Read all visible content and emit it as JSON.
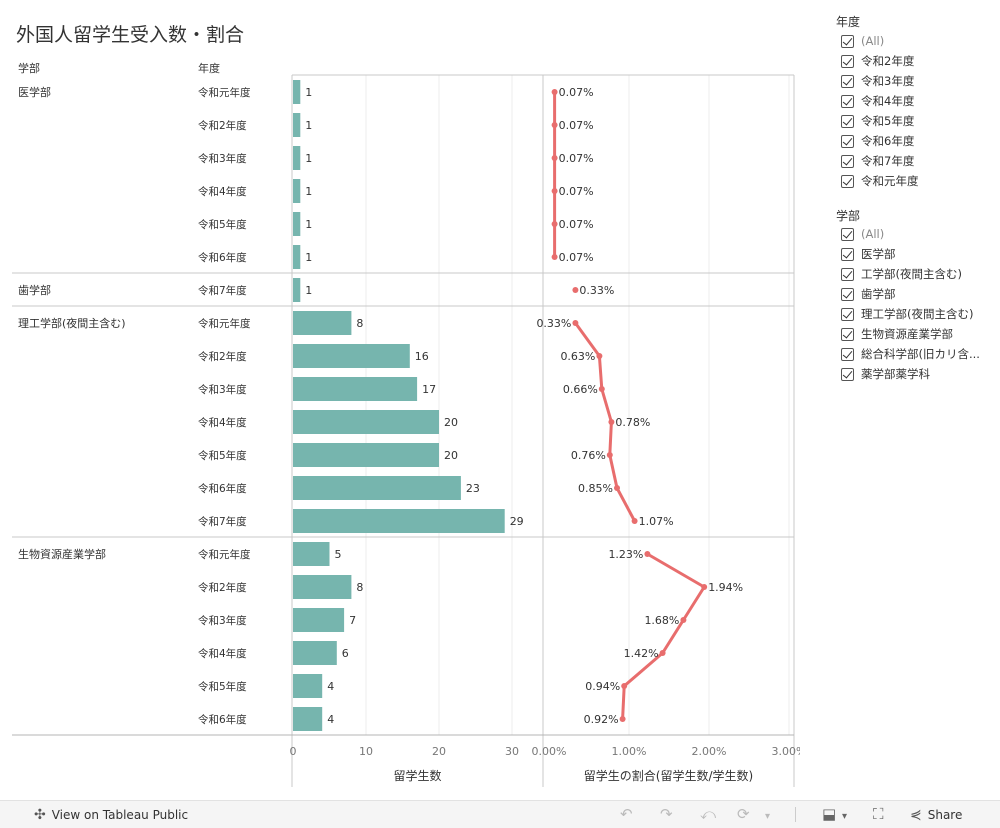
{
  "title": "外国人留学生受入数・割合",
  "headers": {
    "faculty": "学部",
    "year": "年度"
  },
  "chart_data": {
    "type": "bar",
    "rows": [
      {
        "faculty": "医学部",
        "year": "令和元年度",
        "count": 1,
        "ratio": 0.07,
        "ratio_label": "0.07%"
      },
      {
        "faculty": "医学部",
        "year": "令和2年度",
        "count": 1,
        "ratio": 0.07,
        "ratio_label": "0.07%"
      },
      {
        "faculty": "医学部",
        "year": "令和3年度",
        "count": 1,
        "ratio": 0.07,
        "ratio_label": "0.07%"
      },
      {
        "faculty": "医学部",
        "year": "令和4年度",
        "count": 1,
        "ratio": 0.07,
        "ratio_label": "0.07%"
      },
      {
        "faculty": "医学部",
        "year": "令和5年度",
        "count": 1,
        "ratio": 0.07,
        "ratio_label": "0.07%"
      },
      {
        "faculty": "医学部",
        "year": "令和6年度",
        "count": 1,
        "ratio": 0.07,
        "ratio_label": "0.07%"
      },
      {
        "faculty": "歯学部",
        "year": "令和7年度",
        "count": 1,
        "ratio": 0.33,
        "ratio_label": "0.33%"
      },
      {
        "faculty": "理工学部(夜間主含む)",
        "year": "令和元年度",
        "count": 8,
        "ratio": 0.33,
        "ratio_label": "0.33%"
      },
      {
        "faculty": "理工学部(夜間主含む)",
        "year": "令和2年度",
        "count": 16,
        "ratio": 0.63,
        "ratio_label": "0.63%"
      },
      {
        "faculty": "理工学部(夜間主含む)",
        "year": "令和3年度",
        "count": 17,
        "ratio": 0.66,
        "ratio_label": "0.66%"
      },
      {
        "faculty": "理工学部(夜間主含む)",
        "year": "令和4年度",
        "count": 20,
        "ratio": 0.78,
        "ratio_label": "0.78%"
      },
      {
        "faculty": "理工学部(夜間主含む)",
        "year": "令和5年度",
        "count": 20,
        "ratio": 0.76,
        "ratio_label": "0.76%"
      },
      {
        "faculty": "理工学部(夜間主含む)",
        "year": "令和6年度",
        "count": 23,
        "ratio": 0.85,
        "ratio_label": "0.85%"
      },
      {
        "faculty": "理工学部(夜間主含む)",
        "year": "令和7年度",
        "count": 29,
        "ratio": 1.07,
        "ratio_label": "1.07%"
      },
      {
        "faculty": "生物資源産業学部",
        "year": "令和元年度",
        "count": 5,
        "ratio": 1.23,
        "ratio_label": "1.23%"
      },
      {
        "faculty": "生物資源産業学部",
        "year": "令和2年度",
        "count": 8,
        "ratio": 1.94,
        "ratio_label": "1.94%"
      },
      {
        "faculty": "生物資源産業学部",
        "year": "令和3年度",
        "count": 7,
        "ratio": 1.68,
        "ratio_label": "1.68%"
      },
      {
        "faculty": "生物資源産業学部",
        "year": "令和4年度",
        "count": 6,
        "ratio": 1.42,
        "ratio_label": "1.42%"
      },
      {
        "faculty": "生物資源産業学部",
        "year": "令和5年度",
        "count": 4,
        "ratio": 0.94,
        "ratio_label": "0.94%"
      },
      {
        "faculty": "生物資源産業学部",
        "year": "令和6年度",
        "count": 4,
        "ratio": 0.92,
        "ratio_label": "0.92%"
      }
    ],
    "bar_axis": {
      "label": "留学生数",
      "ticks": [
        0,
        10,
        20,
        30
      ]
    },
    "line_axis": {
      "label": "留学生の割合(留学生数/学生数)",
      "ticks": [
        0,
        1,
        2,
        3
      ],
      "tick_labels": [
        "0.00%",
        "1.00%",
        "2.00%",
        "3.00%"
      ]
    },
    "colors": {
      "bar": "#76b5ae",
      "line": "#e86d6d"
    }
  },
  "filters": {
    "year": {
      "title": "年度",
      "items": [
        "(All)",
        "令和2年度",
        "令和3年度",
        "令和4年度",
        "令和5年度",
        "令和6年度",
        "令和7年度",
        "令和元年度"
      ]
    },
    "faculty": {
      "title": "学部",
      "items": [
        "(All)",
        "医学部",
        "工学部(夜間主含む)",
        "歯学部",
        "理工学部(夜間主含む)",
        "生物資源産業学部",
        "総合科学部(旧カリ含...",
        "薬学部薬学科"
      ]
    }
  },
  "footer": {
    "view_label": "View on Tableau Public",
    "share_label": "Share"
  }
}
